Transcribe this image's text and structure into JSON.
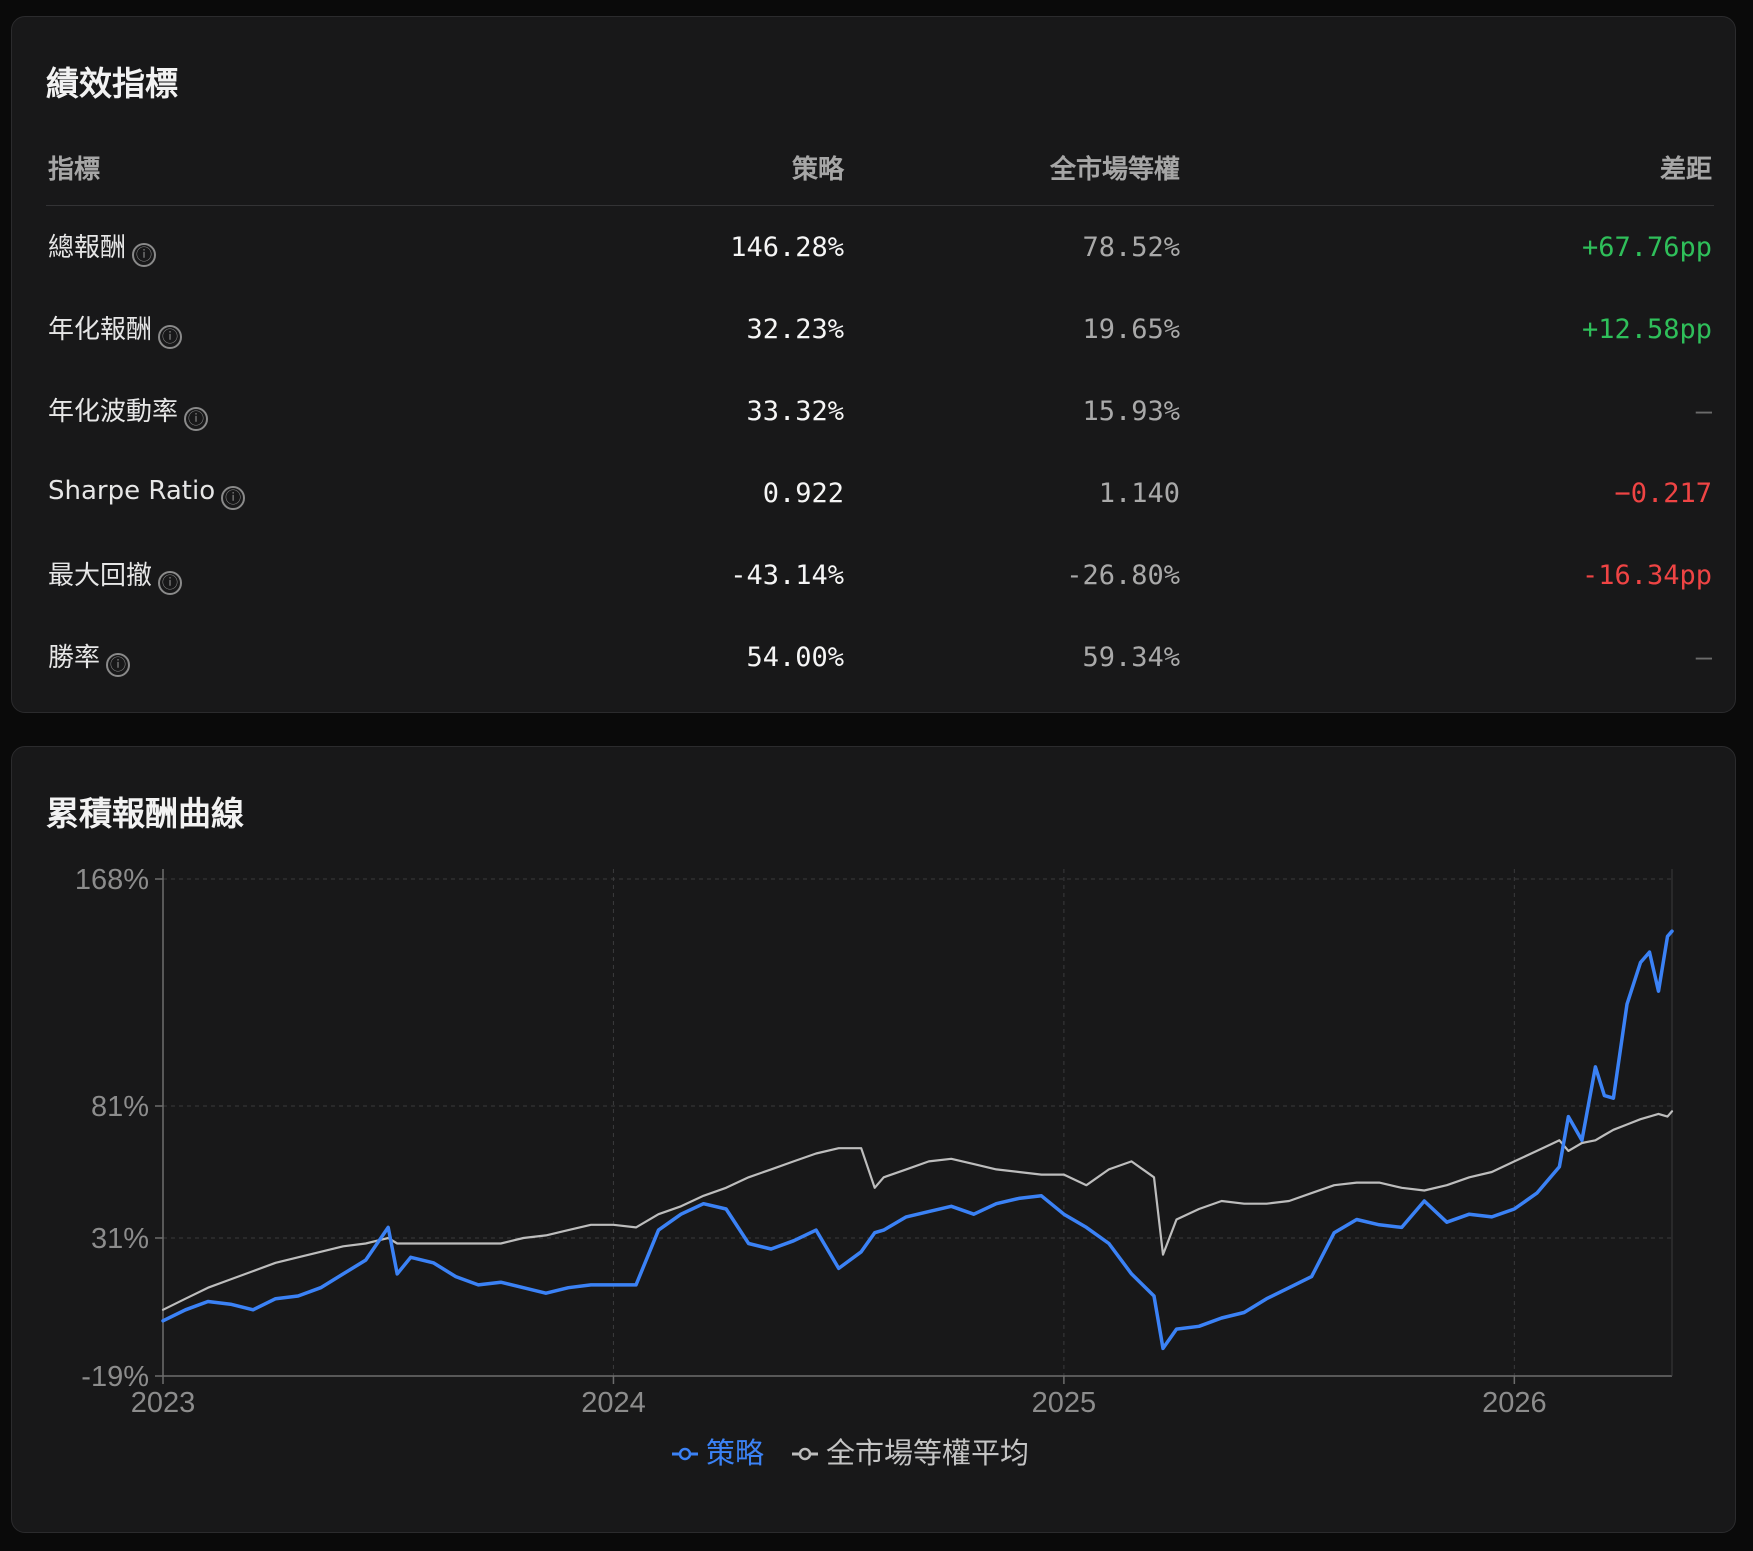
{
  "metrics": {
    "title": "績效指標",
    "headers": {
      "name": "指標",
      "strategy": "策略",
      "market": "全市場等權",
      "diff": "差距"
    },
    "info_glyph": "ⓘ",
    "rows": [
      {
        "name": "總報酬",
        "strategy": "146.28%",
        "market": "78.52%",
        "diff": "+67.76pp",
        "tone": "pos"
      },
      {
        "name": "年化報酬",
        "strategy": "32.23%",
        "market": "19.65%",
        "diff": "+12.58pp",
        "tone": "pos"
      },
      {
        "name": "年化波動率",
        "strategy": "33.32%",
        "market": "15.93%",
        "diff": "—",
        "tone": "none"
      },
      {
        "name": "Sharpe Ratio",
        "strategy": "0.922",
        "market": "1.140",
        "diff": "−0.217",
        "tone": "neg"
      },
      {
        "name": "最大回撤",
        "strategy": "-43.14%",
        "market": "-26.80%",
        "diff": "-16.34pp",
        "tone": "neg"
      },
      {
        "name": "勝率",
        "strategy": "54.00%",
        "market": "59.34%",
        "diff": "—",
        "tone": "none"
      }
    ]
  },
  "chart": {
    "title": "累積報酬曲線"
  },
  "chart_data": {
    "type": "line",
    "title": "累積報酬曲線",
    "xlabel": "",
    "ylabel": "",
    "x_ticks": [
      "2023",
      "2024",
      "2025",
      "2026"
    ],
    "x_tick_values": [
      2023.0,
      2024.0,
      2025.0,
      2026.0
    ],
    "y_ticks": [
      "168%",
      "81%",
      "31%",
      "-19%"
    ],
    "y_tick_values": [
      168,
      81,
      31,
      -19
    ],
    "xlim": [
      2023.0,
      2026.35
    ],
    "ylim": [
      -19,
      168
    ],
    "grid": true,
    "legend_position": "bottom-center",
    "x": [
      2023.0,
      2023.05,
      2023.1,
      2023.15,
      2023.2,
      2023.25,
      2023.3,
      2023.35,
      2023.4,
      2023.45,
      2023.5,
      2023.52,
      2023.55,
      2023.6,
      2023.65,
      2023.7,
      2023.75,
      2023.8,
      2023.85,
      2023.9,
      2023.95,
      2024.0,
      2024.05,
      2024.1,
      2024.15,
      2024.2,
      2024.25,
      2024.3,
      2024.35,
      2024.4,
      2024.45,
      2024.5,
      2024.55,
      2024.58,
      2024.6,
      2024.65,
      2024.7,
      2024.75,
      2024.8,
      2024.85,
      2024.9,
      2024.95,
      2025.0,
      2025.05,
      2025.1,
      2025.15,
      2025.2,
      2025.22,
      2025.25,
      2025.3,
      2025.35,
      2025.4,
      2025.45,
      2025.5,
      2025.55,
      2025.6,
      2025.65,
      2025.7,
      2025.75,
      2025.8,
      2025.85,
      2025.9,
      2025.95,
      2026.0,
      2026.05,
      2026.1,
      2026.12,
      2026.15,
      2026.18,
      2026.2,
      2026.22,
      2026.25,
      2026.28,
      2026.3,
      2026.32,
      2026.34,
      2026.35
    ],
    "series": [
      {
        "name": "策略",
        "color": "#3b82f6",
        "values": [
          1,
          5,
          8,
          7,
          5,
          9,
          10,
          13,
          18,
          23,
          35,
          18,
          24,
          22,
          17,
          14,
          15,
          13,
          11,
          13,
          14,
          14,
          14,
          34,
          40,
          44,
          42,
          29,
          27,
          30,
          34,
          20,
          26,
          33,
          34,
          39,
          41,
          43,
          40,
          44,
          46,
          47,
          40,
          35,
          29,
          18,
          10,
          -9,
          -2,
          -1,
          2,
          4,
          9,
          13,
          17,
          33,
          38,
          36,
          35,
          45,
          37,
          40,
          39,
          42,
          48,
          58,
          77,
          68,
          96,
          85,
          84,
          120,
          136,
          140,
          125,
          146,
          148
        ]
      },
      {
        "name": "全市場等權平均",
        "color": "#bdbdbd",
        "values": [
          5,
          9,
          13,
          16,
          19,
          22,
          24,
          26,
          28,
          29,
          31,
          29,
          29,
          29,
          29,
          29,
          29,
          31,
          32,
          34,
          36,
          36,
          35,
          40,
          43,
          47,
          50,
          54,
          57,
          60,
          63,
          65,
          65,
          50,
          54,
          57,
          60,
          61,
          59,
          57,
          56,
          55,
          55,
          51,
          57,
          60,
          54,
          25,
          38,
          42,
          45,
          44,
          44,
          45,
          48,
          51,
          52,
          52,
          50,
          49,
          51,
          54,
          56,
          60,
          64,
          68,
          64,
          67,
          68,
          70,
          72,
          74,
          76,
          77,
          78,
          77,
          79
        ]
      }
    ]
  }
}
